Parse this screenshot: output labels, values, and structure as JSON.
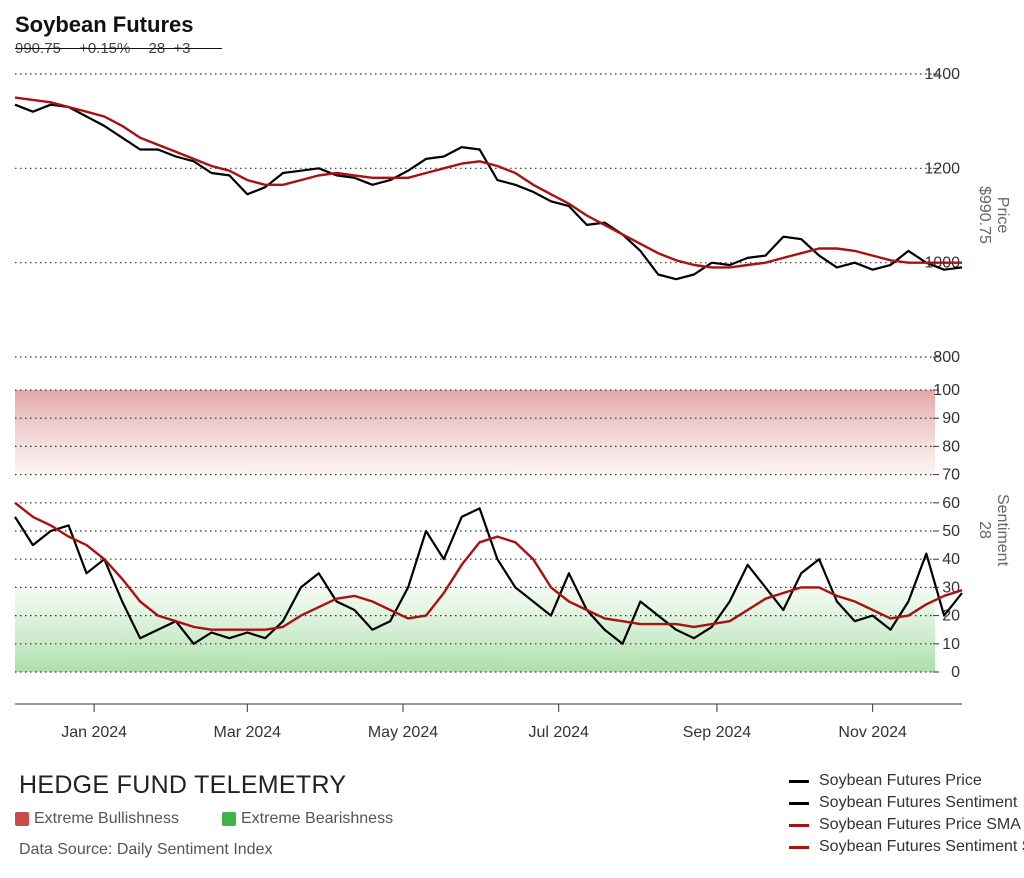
{
  "title": "Soybean Futures",
  "stats": {
    "last": "990.75",
    "change_pct": "+0.15%",
    "sentiment": "28",
    "sentiment_change": "+3"
  },
  "footer": {
    "brand": "HEDGE FUND TELEMETRY",
    "key_bull": "Extreme Bullishness",
    "key_bear": "Extreme Bearishness",
    "source": "Data Source: Daily Sentiment Index"
  },
  "colors": {
    "price": "#000000",
    "sma": "#aa1111",
    "bull_zone": "#c94a4a",
    "bear_zone": "#3fb24a"
  },
  "legend": [
    {
      "label": "Soybean Futures Price",
      "color": "#000000"
    },
    {
      "label": "Soybean Futures Sentiment",
      "color": "#000000"
    },
    {
      "label": "Soybean Futures Price SMA",
      "color": "#aa1111"
    },
    {
      "label": "Soybean Futures Sentiment SMA",
      "color": "#aa1111"
    }
  ],
  "chart_data": [
    {
      "type": "line",
      "panel": "price",
      "axis_title": "Price",
      "axis_value": "$990.75",
      "ylim": [
        800,
        1400
      ],
      "yticks": [
        800,
        1000,
        1200,
        1400
      ],
      "x_dates": [
        "2023-12-01",
        "2023-12-08",
        "2023-12-15",
        "2023-12-22",
        "2023-12-29",
        "2024-01-05",
        "2024-01-12",
        "2024-01-19",
        "2024-01-26",
        "2024-02-02",
        "2024-02-09",
        "2024-02-16",
        "2024-02-23",
        "2024-03-01",
        "2024-03-08",
        "2024-03-15",
        "2024-03-22",
        "2024-03-29",
        "2024-04-05",
        "2024-04-12",
        "2024-04-19",
        "2024-04-26",
        "2024-05-03",
        "2024-05-10",
        "2024-05-17",
        "2024-05-24",
        "2024-05-31",
        "2024-06-07",
        "2024-06-14",
        "2024-06-21",
        "2024-06-28",
        "2024-07-05",
        "2024-07-12",
        "2024-07-19",
        "2024-07-26",
        "2024-08-02",
        "2024-08-09",
        "2024-08-16",
        "2024-08-23",
        "2024-08-30",
        "2024-09-06",
        "2024-09-13",
        "2024-09-20",
        "2024-09-27",
        "2024-10-04",
        "2024-10-11",
        "2024-10-18",
        "2024-10-25",
        "2024-11-01",
        "2024-11-08",
        "2024-11-15",
        "2024-11-22",
        "2024-11-29",
        "2024-12-06"
      ],
      "series": [
        {
          "name": "Soybean Futures Price",
          "values": [
            1335,
            1320,
            1335,
            1330,
            1310,
            1290,
            1265,
            1240,
            1240,
            1225,
            1215,
            1190,
            1185,
            1145,
            1160,
            1190,
            1195,
            1200,
            1185,
            1180,
            1165,
            1175,
            1195,
            1220,
            1225,
            1245,
            1240,
            1175,
            1165,
            1150,
            1130,
            1120,
            1080,
            1085,
            1060,
            1025,
            975,
            965,
            975,
            1000,
            995,
            1010,
            1015,
            1055,
            1050,
            1015,
            990,
            1000,
            985,
            995,
            1025,
            1000,
            985,
            990
          ]
        },
        {
          "name": "Soybean Futures Price SMA",
          "values": [
            1350,
            1345,
            1340,
            1330,
            1320,
            1310,
            1290,
            1265,
            1250,
            1235,
            1220,
            1205,
            1195,
            1175,
            1165,
            1165,
            1175,
            1185,
            1190,
            1185,
            1180,
            1180,
            1180,
            1190,
            1200,
            1210,
            1215,
            1205,
            1190,
            1165,
            1145,
            1125,
            1100,
            1080,
            1060,
            1040,
            1020,
            1005,
            995,
            990,
            990,
            995,
            1000,
            1010,
            1020,
            1030,
            1030,
            1025,
            1015,
            1005,
            1000,
            1000,
            1000,
            1000
          ]
        }
      ]
    },
    {
      "type": "line",
      "panel": "sentiment",
      "axis_title": "Sentiment",
      "axis_value": "28",
      "ylim": [
        0,
        100
      ],
      "yticks": [
        0,
        10,
        20,
        30,
        40,
        50,
        60,
        70,
        80,
        90,
        100
      ],
      "zones": {
        "extreme_bullishness": [
          70,
          100
        ],
        "extreme_bearishness": [
          0,
          30
        ]
      },
      "x_dates": [
        "2023-12-01",
        "2023-12-08",
        "2023-12-15",
        "2023-12-22",
        "2023-12-29",
        "2024-01-05",
        "2024-01-12",
        "2024-01-19",
        "2024-01-26",
        "2024-02-02",
        "2024-02-09",
        "2024-02-16",
        "2024-02-23",
        "2024-03-01",
        "2024-03-08",
        "2024-03-15",
        "2024-03-22",
        "2024-03-29",
        "2024-04-05",
        "2024-04-12",
        "2024-04-19",
        "2024-04-26",
        "2024-05-03",
        "2024-05-10",
        "2024-05-17",
        "2024-05-24",
        "2024-05-31",
        "2024-06-07",
        "2024-06-14",
        "2024-06-21",
        "2024-06-28",
        "2024-07-05",
        "2024-07-12",
        "2024-07-19",
        "2024-07-26",
        "2024-08-02",
        "2024-08-09",
        "2024-08-16",
        "2024-08-23",
        "2024-08-30",
        "2024-09-06",
        "2024-09-13",
        "2024-09-20",
        "2024-09-27",
        "2024-10-04",
        "2024-10-11",
        "2024-10-18",
        "2024-10-25",
        "2024-11-01",
        "2024-11-08",
        "2024-11-15",
        "2024-11-22",
        "2024-11-29",
        "2024-12-06"
      ],
      "series": [
        {
          "name": "Soybean Futures Sentiment",
          "values": [
            55,
            45,
            50,
            52,
            35,
            40,
            25,
            12,
            15,
            18,
            10,
            14,
            12,
            14,
            12,
            18,
            30,
            35,
            25,
            22,
            15,
            18,
            30,
            50,
            40,
            55,
            58,
            40,
            30,
            25,
            20,
            35,
            22,
            15,
            10,
            25,
            20,
            15,
            12,
            16,
            25,
            38,
            30,
            22,
            35,
            40,
            25,
            18,
            20,
            15,
            25,
            42,
            20,
            28
          ]
        },
        {
          "name": "Soybean Futures Sentiment SMA",
          "values": [
            60,
            55,
            52,
            48,
            45,
            40,
            33,
            25,
            20,
            18,
            16,
            15,
            15,
            15,
            15,
            16,
            20,
            23,
            26,
            27,
            25,
            22,
            19,
            20,
            28,
            38,
            46,
            48,
            46,
            40,
            30,
            25,
            22,
            19,
            18,
            17,
            17,
            17,
            16,
            17,
            18,
            22,
            26,
            28,
            30,
            30,
            27,
            25,
            22,
            19,
            20,
            24,
            27,
            29
          ]
        }
      ]
    }
  ],
  "x_axis": {
    "ticks": [
      {
        "label": "Jan 2024",
        "date": "2024-01-01"
      },
      {
        "label": "Mar 2024",
        "date": "2024-03-01"
      },
      {
        "label": "May 2024",
        "date": "2024-05-01"
      },
      {
        "label": "Jul 2024",
        "date": "2024-07-01"
      },
      {
        "label": "Sep 2024",
        "date": "2024-09-01"
      },
      {
        "label": "Nov 2024",
        "date": "2024-11-01"
      }
    ]
  }
}
